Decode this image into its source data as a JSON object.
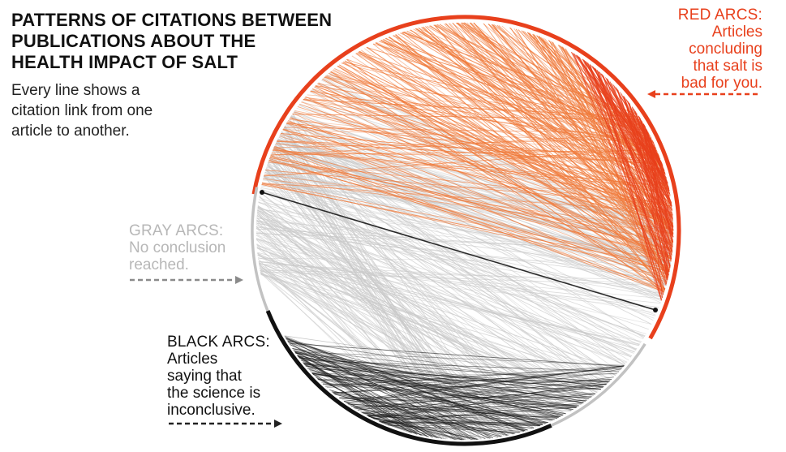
{
  "title_lines": [
    "PATTERNS OF CITATIONS BETWEEN",
    "PUBLICATIONS ABOUT THE",
    "HEALTH IMPACT OF SALT"
  ],
  "subtitle_lines": [
    "Every line shows a",
    "citation link from one",
    "article to another."
  ],
  "legend": {
    "red": {
      "heading": "RED ARCS:",
      "lines": [
        "Articles",
        "concluding",
        "that salt is",
        "bad for you."
      ],
      "color": "#e8401c",
      "pointer": "left-arrow"
    },
    "gray": {
      "heading": "GRAY ARCS:",
      "lines": [
        "No conclusion",
        "reached."
      ],
      "color": "#b7b7b7",
      "pointer": "right-arrow"
    },
    "black": {
      "heading": "BLACK ARCS:",
      "lines": [
        "Articles",
        "saying that",
        "the science is",
        "inconclusive."
      ],
      "color": "#111111",
      "pointer": "right-arrow"
    }
  },
  "colors": {
    "red_lines": "#f07b3c",
    "red_ring": "#e8401c",
    "gray_lines": "#c9c9c9",
    "gray_ring": "#c2c2c2",
    "black_lines": "#1a1a1a",
    "black_ring": "#111111"
  }
}
